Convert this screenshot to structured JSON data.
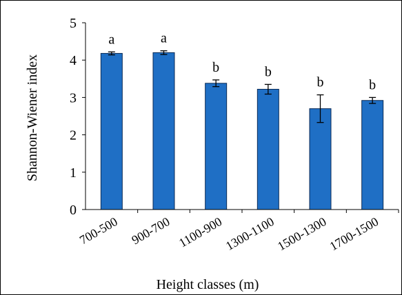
{
  "chart_data": {
    "type": "bar",
    "title": "",
    "xlabel": "Height classes (m)",
    "ylabel": "Shannon-Wiener index",
    "ylim": [
      0,
      5
    ],
    "yticks": [
      "0",
      "1",
      "2",
      "3",
      "4",
      "5"
    ],
    "categories": [
      "700-500",
      "900-700",
      "1100-900",
      "1300-1100",
      "1500-1300",
      "1700-1500"
    ],
    "series": [
      {
        "values": [
          4.18,
          4.2,
          3.38,
          3.22,
          2.7,
          2.92
        ],
        "errors": [
          0.04,
          0.05,
          0.09,
          0.13,
          0.37,
          0.08
        ],
        "letters": [
          "a",
          "a",
          "b",
          "b",
          "b",
          "b"
        ]
      }
    ],
    "grid": false,
    "legend": "none",
    "colors": {
      "bar_fill": "#1f6fc5",
      "bar_stroke": "#0b2a55",
      "text": "#000000"
    }
  }
}
